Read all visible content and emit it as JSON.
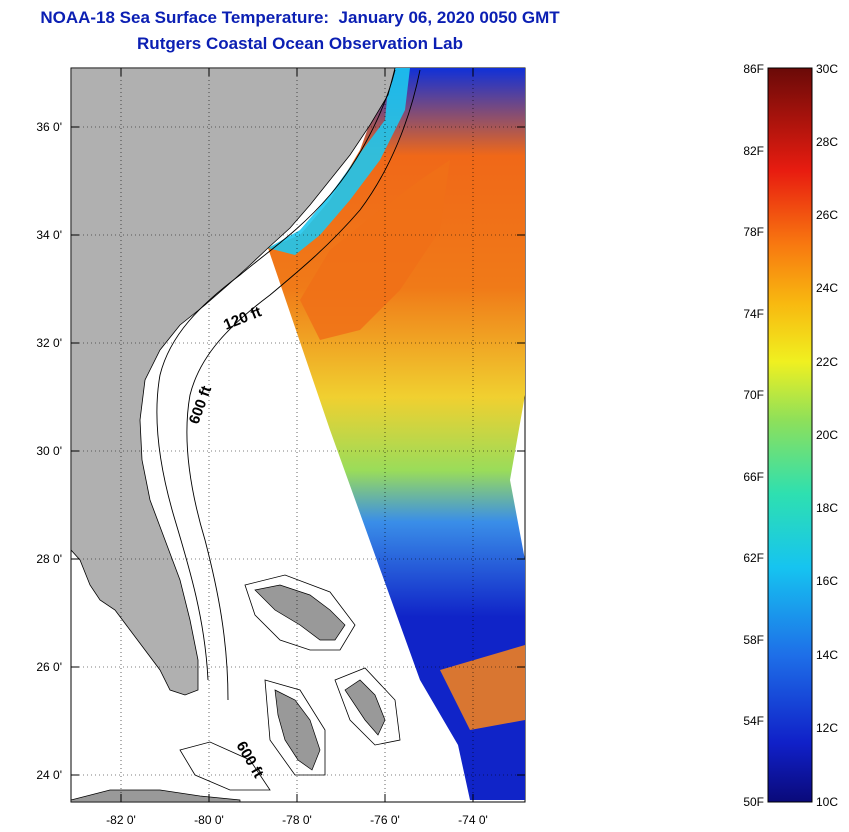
{
  "header": {
    "title": "NOAA-18 Sea Surface Temperature:  January 06, 2020 0050 GMT",
    "subtitle": "Rutgers Coastal Ocean Observation Lab"
  },
  "map": {
    "lat_labels": [
      "36 0'",
      "34 0'",
      "32 0'",
      "30 0'",
      "28 0'",
      "26 0'",
      "24 0'"
    ],
    "lon_labels": [
      "-82 0'",
      "-80 0'",
      "-78 0'",
      "-76 0'",
      "-74 0'"
    ],
    "contour_labels": [
      "120 ft",
      "600 ft",
      "600 ft"
    ],
    "land_color": "#b0b0b0"
  },
  "colorbar": {
    "f_labels": [
      "86F",
      "82F",
      "78F",
      "74F",
      "70F",
      "66F",
      "62F",
      "58F",
      "54F",
      "50F"
    ],
    "c_labels": [
      "30C",
      "28C",
      "26C",
      "24C",
      "22C",
      "20C",
      "18C",
      "16C",
      "14C",
      "12C",
      "10C"
    ]
  }
}
